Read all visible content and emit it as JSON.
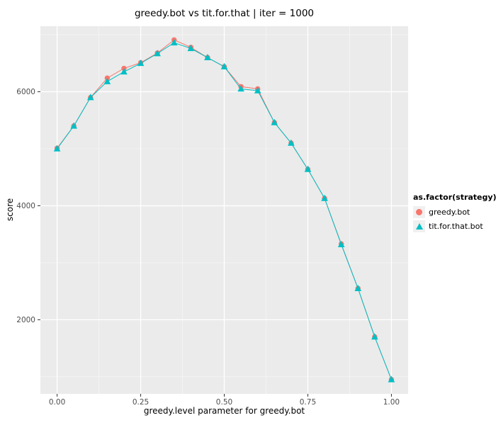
{
  "chart_data": {
    "type": "line",
    "title": "greedy.bot vs tit.for.that | iter = 1000",
    "xlabel": "greedy.level parameter for greedy.bot",
    "ylabel": "score",
    "legend_title": "as.factor(strategy)",
    "legend_position": "right",
    "grid": true,
    "x": [
      0.0,
      0.05,
      0.1,
      0.15,
      0.2,
      0.25,
      0.3,
      0.35,
      0.4,
      0.45,
      0.5,
      0.55,
      0.6,
      0.65,
      0.7,
      0.75,
      0.8,
      0.85,
      0.9,
      0.95,
      1.0
    ],
    "series": [
      {
        "name": "greedy.bot",
        "marker": "circle",
        "color": "#F8766D",
        "values": [
          5010,
          5400,
          5900,
          6240,
          6410,
          6510,
          6680,
          6910,
          6780,
          6600,
          6440,
          6090,
          6050,
          5460,
          5100,
          4640,
          4130,
          3330,
          2550,
          1700,
          950
        ]
      },
      {
        "name": "tit.for.that.bot",
        "marker": "triangle",
        "color": "#00BFC4",
        "values": [
          5000,
          5400,
          5900,
          6180,
          6350,
          6500,
          6670,
          6860,
          6760,
          6600,
          6440,
          6050,
          6020,
          5460,
          5100,
          4640,
          4130,
          3320,
          2550,
          1700,
          950
        ]
      }
    ],
    "xlim": [
      -0.05,
      1.05
    ],
    "ylim": [
      700,
      7150
    ],
    "x_ticks": [
      0.0,
      0.25,
      0.5,
      0.75,
      1.0
    ],
    "x_tick_labels": [
      "0.00",
      "0.25",
      "0.50",
      "0.75",
      "1.00"
    ],
    "y_ticks": [
      2000,
      4000,
      6000
    ],
    "y_tick_labels": [
      "2000",
      "4000",
      "6000"
    ],
    "x_minor": [
      0.125,
      0.375,
      0.625,
      0.875
    ],
    "y_minor": [
      1000,
      3000,
      5000,
      7000
    ],
    "colors": {
      "panel_bg": "#EBEBEB",
      "grid_major": "#FFFFFF",
      "grid_minor": "#FFFFFF",
      "tick_text": "#4D4D4D",
      "tick_mark": "#333333",
      "legend_key_bg": "#F0F0F0"
    }
  }
}
